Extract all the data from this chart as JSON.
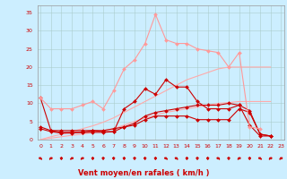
{
  "x": [
    0,
    1,
    2,
    3,
    4,
    5,
    6,
    7,
    8,
    9,
    10,
    11,
    12,
    13,
    14,
    15,
    16,
    17,
    18,
    19,
    20,
    21,
    22,
    23
  ],
  "series": [
    {
      "y": [
        11.5,
        2.5,
        2.0,
        2.0,
        2.0,
        2.5,
        2.2,
        2.2,
        8.5,
        10.5,
        14.0,
        12.5,
        16.5,
        14.5,
        14.5,
        10.5,
        8.5,
        8.5,
        8.5,
        9.5,
        4.0,
        1.0,
        1.0,
        null
      ],
      "color": "#cc0000",
      "marker": "D",
      "markersize": 2.0,
      "linewidth": 0.8
    },
    {
      "y": [
        3.0,
        2.2,
        1.8,
        1.8,
        2.0,
        2.0,
        2.0,
        2.2,
        3.5,
        4.0,
        5.5,
        6.5,
        6.5,
        6.5,
        6.5,
        5.5,
        5.5,
        5.5,
        5.5,
        8.5,
        7.5,
        1.5,
        1.0,
        null
      ],
      "color": "#cc0000",
      "marker": "D",
      "markersize": 2.0,
      "linewidth": 0.8
    },
    {
      "y": [
        3.5,
        2.5,
        2.5,
        2.5,
        2.5,
        2.5,
        2.5,
        3.0,
        3.5,
        4.5,
        6.5,
        7.5,
        8.0,
        8.5,
        9.0,
        9.5,
        9.5,
        9.5,
        10.0,
        9.5,
        8.0,
        1.5,
        1.0,
        null
      ],
      "color": "#cc0000",
      "marker": "D",
      "markersize": 2.0,
      "linewidth": 0.8
    },
    {
      "y": [
        11.5,
        8.5,
        8.5,
        8.5,
        9.5,
        10.5,
        8.5,
        13.5,
        19.5,
        22.0,
        26.5,
        34.5,
        27.5,
        26.5,
        26.5,
        25.0,
        24.5,
        24.0,
        20.0,
        24.0,
        3.5,
        3.0,
        null,
        null
      ],
      "color": "#ff9999",
      "marker": "D",
      "markersize": 2.0,
      "linewidth": 0.8
    },
    {
      "y": [
        0.0,
        0.8,
        1.5,
        2.2,
        3.0,
        3.8,
        4.8,
        6.0,
        7.5,
        9.0,
        10.5,
        12.0,
        13.5,
        15.0,
        16.5,
        17.5,
        18.5,
        19.5,
        20.0,
        20.0,
        20.0,
        20.0,
        20.0,
        null
      ],
      "color": "#ffaaaa",
      "marker": null,
      "markersize": 0,
      "linewidth": 0.8
    },
    {
      "y": [
        0.0,
        0.4,
        0.8,
        1.2,
        1.5,
        2.0,
        2.5,
        3.0,
        4.0,
        5.0,
        6.0,
        6.8,
        7.5,
        8.0,
        8.5,
        9.0,
        9.5,
        10.0,
        10.2,
        10.5,
        10.5,
        10.5,
        10.5,
        null
      ],
      "color": "#ffaaaa",
      "marker": null,
      "markersize": 0,
      "linewidth": 0.8
    }
  ],
  "xlim": [
    -0.3,
    23.3
  ],
  "ylim": [
    0,
    37
  ],
  "yticks": [
    0,
    5,
    10,
    15,
    20,
    25,
    30,
    35
  ],
  "xticks": [
    0,
    1,
    2,
    3,
    4,
    5,
    6,
    7,
    8,
    9,
    10,
    11,
    12,
    13,
    14,
    15,
    16,
    17,
    18,
    19,
    20,
    21,
    22,
    23
  ],
  "xlabel": "Vent moyen/en rafales ( km/h )",
  "xlabel_color": "#cc0000",
  "tick_color": "#cc0000",
  "background_color": "#cceeff",
  "grid_color": "#aacccc",
  "arrow_color": "#cc0000"
}
